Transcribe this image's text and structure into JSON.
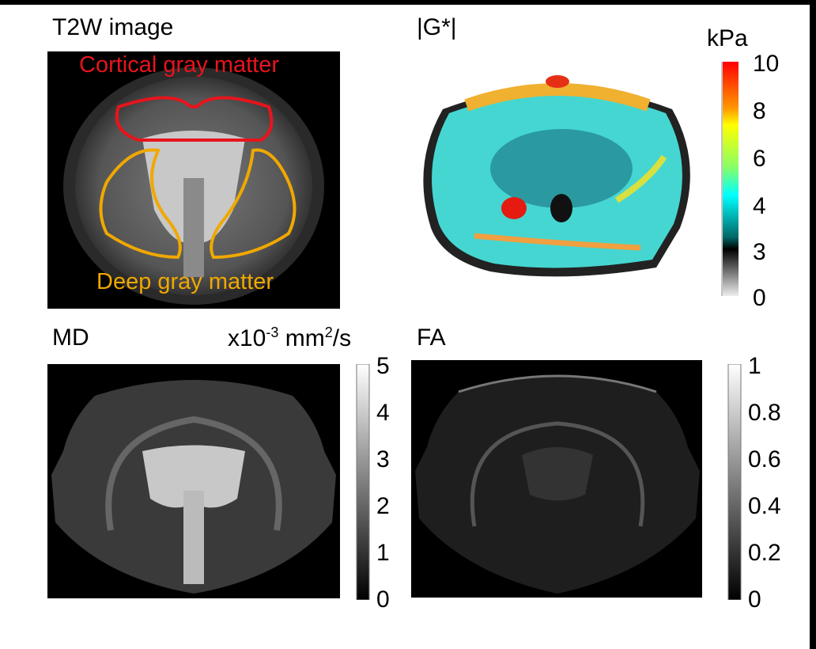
{
  "panels": {
    "t2w": {
      "title": "T2W image",
      "roi_cortical": "Cortical gray matter",
      "roi_deep": "Deep gray matter",
      "roi_cortical_color": "#e8141c",
      "roi_deep_color": "#f0a800"
    },
    "g": {
      "title": "|G*|",
      "unit": "kPa",
      "colormap": "jet-like with grayscale lower range",
      "ticks": [
        "10",
        "8",
        "6",
        "4",
        "3",
        "0"
      ]
    },
    "md": {
      "title": "MD",
      "unit_prefix": "x10",
      "unit_exp": "-3",
      "unit_mid": " mm",
      "unit_exp2": "2",
      "unit_suffix": "/s",
      "colormap": "grayscale",
      "ticks": [
        "5",
        "4",
        "3",
        "2",
        "1",
        "0"
      ]
    },
    "fa": {
      "title": "FA",
      "colormap": "grayscale",
      "ticks": [
        "1",
        "0.8",
        "0.6",
        "0.4",
        "0.2",
        "0"
      ]
    }
  }
}
